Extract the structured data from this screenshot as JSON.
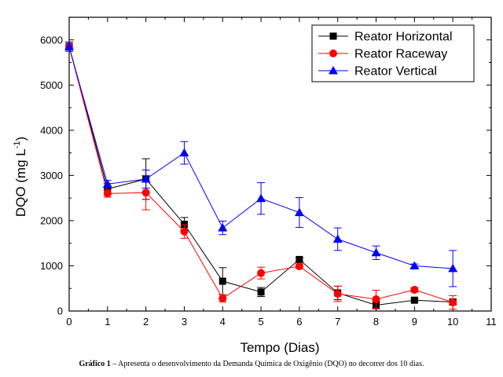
{
  "caption": {
    "label": "Gráfico 1",
    "text": " – Apresenta o desenvolvimento da Demanda Química de Oxigênio (DQO) no decorrer dos 10 dias."
  },
  "chart_data": {
    "type": "line",
    "xlabel": "Tempo (Dias)",
    "ylabel": "DQO (mg L",
    "ylabel_sup": "-1",
    "ylabel_end": ")",
    "xlim": [
      0,
      11
    ],
    "ylim": [
      0,
      6500
    ],
    "xticks": [
      0,
      1,
      2,
      3,
      4,
      5,
      6,
      7,
      8,
      9,
      10,
      11
    ],
    "yticks": [
      0,
      1000,
      2000,
      3000,
      4000,
      5000,
      6000
    ],
    "legend_position": "top-right",
    "grid": false,
    "series": [
      {
        "name": "Reator Horizontal",
        "color": "#000000",
        "marker": "square",
        "x": [
          0,
          1,
          2,
          3,
          4,
          5,
          6,
          7,
          8,
          9,
          10
        ],
        "y": [
          5850,
          2700,
          2920,
          1920,
          660,
          420,
          1140,
          400,
          130,
          240,
          200
        ],
        "err": [
          100,
          120,
          450,
          150,
          300,
          100,
          40,
          150,
          80,
          30,
          50
        ]
      },
      {
        "name": "Reator Raceway",
        "color": "#ff0000",
        "marker": "circle",
        "x": [
          0,
          1,
          2,
          3,
          4,
          5,
          6,
          7,
          8,
          9,
          10
        ],
        "y": [
          5850,
          2600,
          2620,
          1760,
          280,
          840,
          990,
          380,
          260,
          470,
          190
        ],
        "err": [
          100,
          80,
          380,
          150,
          80,
          130,
          50,
          170,
          200,
          50,
          150
        ]
      },
      {
        "name": "Reator Vertical",
        "color": "#0000ff",
        "marker": "triangle",
        "x": [
          0,
          1,
          2,
          3,
          4,
          5,
          6,
          7,
          8,
          9,
          10
        ],
        "y": [
          5850,
          2810,
          2920,
          3500,
          1840,
          2490,
          2180,
          1590,
          1290,
          1000,
          940
        ],
        "err": [
          100,
          80,
          200,
          250,
          150,
          350,
          330,
          250,
          150,
          40,
          400
        ]
      }
    ]
  }
}
